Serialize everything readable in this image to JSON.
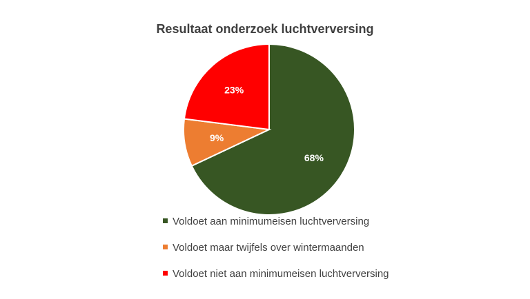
{
  "chart_data": {
    "type": "pie",
    "title": "Resultaat onderzoek luchtverversing",
    "legend_position": "bottom",
    "slices": [
      {
        "label": "Voldoet aan minimumeisen luchtverversing",
        "value": 68,
        "display": "68%",
        "color": "#375623"
      },
      {
        "label": "Voldoet maar twijfels over wintermaanden",
        "value": 9,
        "display": "9%",
        "color": "#ED7D31"
      },
      {
        "label": "Voldoet niet aan minimumeisen luchtverversing",
        "value": 23,
        "display": "23%",
        "color": "#FF0000"
      }
    ]
  }
}
